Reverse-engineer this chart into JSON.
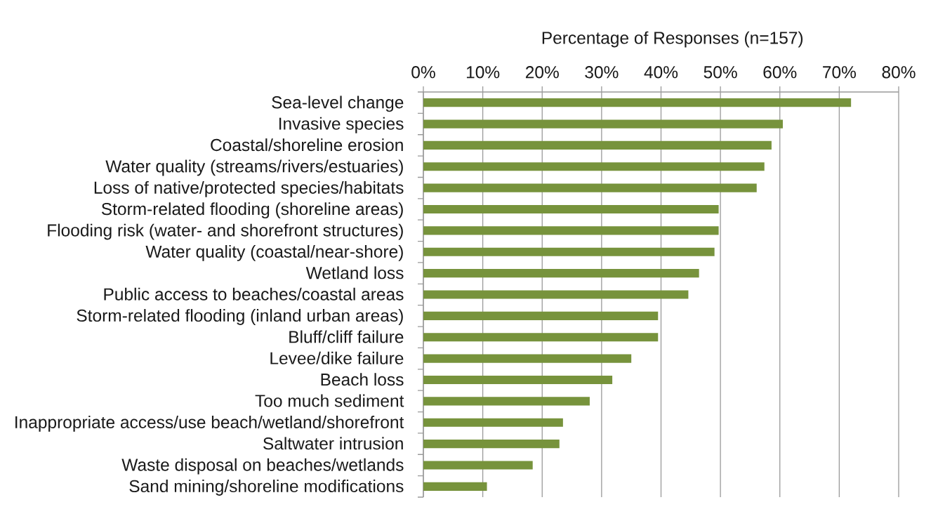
{
  "chart_data": {
    "type": "bar",
    "orientation": "horizontal",
    "xlabel": "Percentage of Responses (n=157)",
    "categories": [
      "Sea-level change",
      "Invasive species",
      "Coastal/shoreline erosion",
      "Water quality (streams/rivers/estuaries)",
      "Loss of native/protected species/habitats",
      "Storm-related flooding (shoreline areas)",
      "Flooding risk (water- and shorefront structures)",
      "Water quality (coastal/near-shore)",
      "Wetland loss",
      "Public access to beaches/coastal areas",
      "Storm-related flooding (inland urban areas)",
      "Bluff/cliff failure",
      "Levee/dike failure",
      "Beach loss",
      "Too much sediment",
      "Inappropriate access/use beach/wetland/shorefront",
      "Saltwater intrusion",
      "Waste disposal on beaches/wetlands",
      "Sand mining/shoreline modifications"
    ],
    "values": [
      72.0,
      60.5,
      58.6,
      57.4,
      56.1,
      49.7,
      49.7,
      49.0,
      46.4,
      44.6,
      39.5,
      39.5,
      35.0,
      31.8,
      28.0,
      23.5,
      22.9,
      18.4,
      10.7
    ],
    "color": "#77933c",
    "xlim": [
      0,
      80
    ],
    "xticks": [
      {
        "value": 0,
        "label": "0%"
      },
      {
        "value": 10,
        "label": "10%"
      },
      {
        "value": 20,
        "label": "20%"
      },
      {
        "value": 30,
        "label": "30%"
      },
      {
        "value": 40,
        "label": "40%"
      },
      {
        "value": 50,
        "label": "50%"
      },
      {
        "value": 60,
        "label": "60%"
      },
      {
        "value": 70,
        "label": "70%"
      },
      {
        "value": 80,
        "label": "80%"
      }
    ],
    "grid": "x"
  }
}
